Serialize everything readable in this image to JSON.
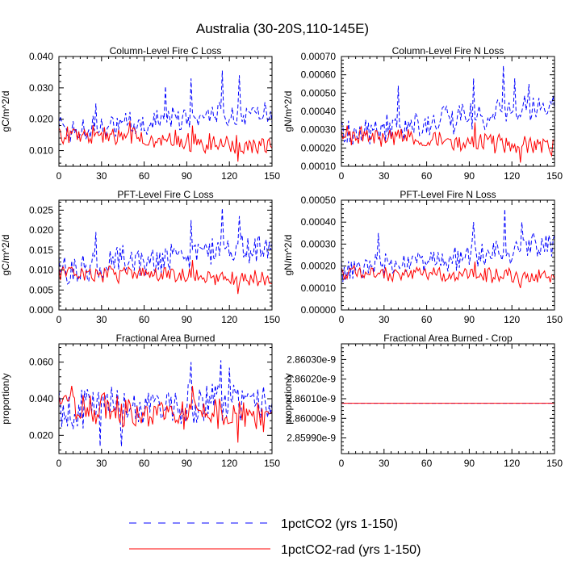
{
  "figure": {
    "title": "Australia (30-20S,110-145E)"
  },
  "legend": {
    "placement": "bottom-center",
    "items": [
      {
        "label": "1pctCO2 (yrs 1-150)",
        "color": "#0000ff",
        "dash": "dashed"
      },
      {
        "label": "1pctCO2-rad (yrs 1-150)",
        "color": "#ff0000",
        "dash": "solid"
      }
    ]
  },
  "chart_data": [
    {
      "type": "line",
      "title": "Column-Level Fire C Loss",
      "ylabel": "gC/m^2/d",
      "xlim": [
        0,
        150
      ],
      "ylim": [
        0.005,
        0.04
      ],
      "xticks": [
        0,
        30,
        60,
        90,
        120,
        150
      ],
      "xtick_labels": [
        "0",
        "30",
        "60",
        "90",
        "120",
        "150"
      ],
      "yticks": [
        0.01,
        0.02,
        0.03,
        0.04
      ],
      "ytick_labels": [
        "0.010",
        "0.020",
        "0.030",
        "0.040"
      ],
      "series": [
        {
          "name": "1pctCO2 (yrs 1-150)",
          "color": "#0000ff",
          "dash": "dashed",
          "base": [
            0.0165,
            0.0225
          ],
          "noise": 0.0035,
          "spikes": [
            [
              115,
              0.0355
            ],
            [
              127,
              0.034
            ],
            [
              93,
              0.033
            ],
            [
              75,
              0.0305
            ],
            [
              26,
              0.025
            ]
          ]
        },
        {
          "name": "1pctCO2-rad (yrs 1-150)",
          "color": "#ff0000",
          "dash": "solid",
          "base": [
            0.0155,
            0.0115
          ],
          "noise": 0.0028,
          "spikes": [
            [
              94,
              0.018
            ],
            [
              50,
              0.0195
            ],
            [
              126,
              0.0065
            ]
          ]
        }
      ]
    },
    {
      "type": "line",
      "title": "Column-Level Fire N Loss",
      "ylabel": "gN/m^2/d",
      "xlim": [
        0,
        150
      ],
      "ylim": [
        0.0001,
        0.0007
      ],
      "xticks": [
        0,
        30,
        60,
        90,
        120,
        150
      ],
      "xtick_labels": [
        "0",
        "30",
        "60",
        "90",
        "120",
        "150"
      ],
      "yticks": [
        0.0001,
        0.0002,
        0.0003,
        0.0004,
        0.0005,
        0.0006,
        0.0007
      ],
      "ytick_labels": [
        "0.00010",
        "0.00020",
        "0.00030",
        "0.00040",
        "0.00050",
        "0.00060",
        "0.00070"
      ],
      "series": [
        {
          "name": "1pctCO2 (yrs 1-150)",
          "color": "#0000ff",
          "dash": "dashed",
          "base": [
            0.00028,
            0.00043
          ],
          "noise": 7e-05,
          "spikes": [
            [
              114,
              0.00065
            ],
            [
              93,
              0.00058
            ],
            [
              122,
              0.00058
            ],
            [
              40,
              0.00054
            ],
            [
              132,
              0.00055
            ]
          ]
        },
        {
          "name": "1pctCO2-rad (yrs 1-150)",
          "color": "#ff0000",
          "dash": "solid",
          "base": [
            0.00027,
            0.00021
          ],
          "noise": 4.5e-05,
          "spikes": [
            [
              94,
              0.00034
            ],
            [
              126,
              0.00012
            ]
          ]
        }
      ]
    },
    {
      "type": "line",
      "title": "PFT-Level Fire C Loss",
      "ylabel": "gC/m^2/d",
      "xlim": [
        0,
        150
      ],
      "ylim": [
        0,
        0.0275
      ],
      "xticks": [
        0,
        30,
        60,
        90,
        120,
        150
      ],
      "xtick_labels": [
        "0",
        "30",
        "60",
        "90",
        "120",
        "150"
      ],
      "yticks": [
        0,
        0.005,
        0.01,
        0.015,
        0.02,
        0.025
      ],
      "ytick_labels": [
        "0.000",
        "0.005",
        "0.010",
        "0.015",
        "0.020",
        "0.025"
      ],
      "series": [
        {
          "name": "1pctCO2 (yrs 1-150)",
          "color": "#0000ff",
          "dash": "dashed",
          "base": [
            0.01,
            0.0165
          ],
          "noise": 0.0035,
          "spikes": [
            [
              115,
              0.0255
            ],
            [
              26,
              0.0195
            ],
            [
              93,
              0.0225
            ],
            [
              127,
              0.0235
            ]
          ]
        },
        {
          "name": "1pctCO2-rad (yrs 1-150)",
          "color": "#ff0000",
          "dash": "solid",
          "base": [
            0.0095,
            0.0075
          ],
          "noise": 0.0018,
          "spikes": [
            [
              94,
              0.0125
            ],
            [
              126,
              0.004
            ]
          ]
        }
      ]
    },
    {
      "type": "line",
      "title": "PFT-Level Fire N Loss",
      "ylabel": "gN/m^2/d",
      "xlim": [
        0,
        150
      ],
      "ylim": [
        0,
        0.0005
      ],
      "xticks": [
        0,
        30,
        60,
        90,
        120,
        150
      ],
      "xtick_labels": [
        "0",
        "30",
        "60",
        "90",
        "120",
        "150"
      ],
      "yticks": [
        0,
        0.0001,
        0.0002,
        0.0003,
        0.0004,
        0.0005
      ],
      "ytick_labels": [
        "0.00000",
        "0.00010",
        "0.00020",
        "0.00030",
        "0.00040",
        "0.00050"
      ],
      "series": [
        {
          "name": "1pctCO2 (yrs 1-150)",
          "color": "#0000ff",
          "dash": "dashed",
          "base": [
            0.00017,
            0.0003
          ],
          "noise": 5e-05,
          "spikes": [
            [
              115,
              0.00046
            ],
            [
              26,
              0.00035
            ],
            [
              93,
              0.0004
            ],
            [
              127,
              0.0004
            ]
          ]
        },
        {
          "name": "1pctCO2-rad (yrs 1-150)",
          "color": "#ff0000",
          "dash": "solid",
          "base": [
            0.00017,
            0.00015
          ],
          "noise": 3e-05,
          "spikes": [
            [
              94,
              0.00022
            ],
            [
              126,
              0.0001
            ]
          ]
        }
      ]
    },
    {
      "type": "line",
      "title": "Fractional Area Burned",
      "ylabel": "proportion/y",
      "xlim": [
        0,
        150
      ],
      "ylim": [
        0.01,
        0.07
      ],
      "xticks": [
        0,
        30,
        60,
        90,
        120,
        150
      ],
      "xtick_labels": [
        "0",
        "30",
        "60",
        "90",
        "120",
        "150"
      ],
      "yticks": [
        0.02,
        0.04,
        0.06
      ],
      "ytick_labels": [
        "0.020",
        "0.040",
        "0.060"
      ],
      "series": [
        {
          "name": "1pctCO2 (yrs 1-150)",
          "color": "#0000ff",
          "dash": "dashed",
          "base": [
            0.034,
            0.04
          ],
          "noise": 0.01,
          "spikes": [
            [
              114,
              0.061
            ],
            [
              93,
              0.06
            ],
            [
              29,
              0.014
            ],
            [
              44,
              0.014
            ],
            [
              120,
              0.057
            ]
          ]
        },
        {
          "name": "1pctCO2-rad (yrs 1-150)",
          "color": "#ff0000",
          "dash": "solid",
          "base": [
            0.036,
            0.029
          ],
          "noise": 0.0075,
          "spikes": [
            [
              9,
              0.047
            ],
            [
              94,
              0.047
            ],
            [
              126,
              0.016
            ]
          ]
        }
      ]
    },
    {
      "type": "line",
      "title": "Fractional Area Burned - Crop",
      "ylabel": "proportion/y",
      "xlim": [
        0,
        150
      ],
      "ylim": [
        2.85982e-09,
        2.86038e-09
      ],
      "xticks": [
        0,
        30,
        60,
        90,
        120,
        150
      ],
      "xtick_labels": [
        "0",
        "30",
        "60",
        "90",
        "120",
        "150"
      ],
      "yticks": [
        2.8599e-09,
        2.86e-09,
        2.8601e-09,
        2.8602e-09,
        2.8603e-09
      ],
      "ytick_labels": [
        "2.85990e-9",
        "2.86000e-9",
        "2.86010e-9",
        "2.86020e-9",
        "2.86030e-9"
      ],
      "series": [
        {
          "name": "1pctCO2 (yrs 1-150)",
          "color": "#0000ff",
          "dash": "dashed",
          "constant": 2.860077e-09
        },
        {
          "name": "1pctCO2-rad (yrs 1-150)",
          "color": "#ff0000",
          "dash": "solid",
          "constant": 2.860077e-09
        }
      ]
    }
  ]
}
